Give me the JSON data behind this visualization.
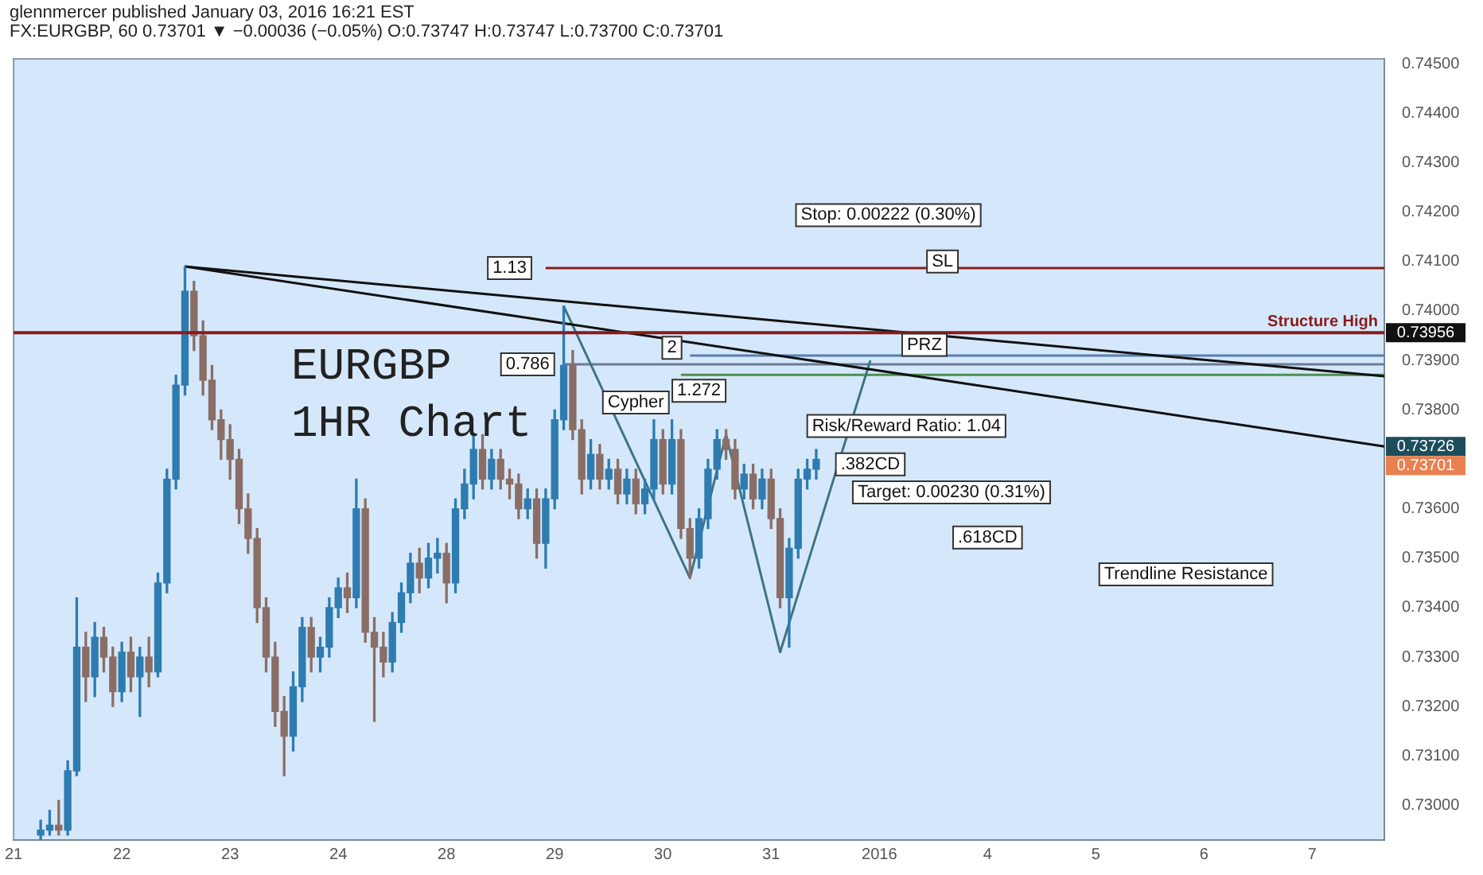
{
  "chart_data": {
    "type": "candlestick",
    "title": "glennmercer published January 03, 2016 16:21 EST",
    "subtitle": "FX:EURGBP, 60  0.73701 ▼ −0.00036 (−0.05%) O:0.73747 H:0.73747 L:0.73700 C:0.73701",
    "categories": [
      "21",
      null,
      null,
      null,
      null,
      null,
      null,
      null,
      null,
      null,
      null,
      null,
      "22",
      null,
      null,
      null,
      null,
      null,
      null,
      null,
      null,
      null,
      null,
      null,
      "23",
      null,
      null,
      null,
      null,
      null,
      null,
      null,
      null,
      null,
      null,
      null,
      "24",
      null,
      null,
      null,
      null,
      null,
      null,
      null,
      null,
      null,
      null,
      null,
      "28",
      null,
      null,
      null,
      null,
      null,
      null,
      null,
      null,
      null,
      null,
      null,
      "29",
      null,
      null,
      null,
      null,
      null,
      null,
      null,
      null,
      null,
      null,
      null,
      "30",
      null,
      null,
      null,
      null,
      null,
      null,
      null,
      null,
      null,
      null,
      null,
      "31",
      null,
      null,
      null,
      null,
      null,
      null,
      null,
      null,
      null,
      null,
      null,
      "2016",
      null,
      null,
      null,
      null,
      null,
      null,
      null,
      null,
      null,
      null,
      null,
      "4",
      null,
      null,
      null,
      null,
      null,
      null,
      null,
      null,
      null,
      null,
      null,
      "5",
      null,
      null,
      null,
      null,
      null,
      null,
      null,
      null,
      null,
      null,
      null,
      "6",
      null,
      null,
      null,
      null,
      null,
      null,
      null,
      null,
      null,
      null,
      null,
      "7",
      null,
      null,
      null,
      null,
      null,
      null,
      null,
      null
    ],
    "ohlc": [
      null,
      null,
      null,
      [
        0.7294,
        0.7297,
        0.7293,
        0.7295
      ],
      [
        0.7295,
        0.7299,
        0.7294,
        0.7296
      ],
      [
        0.7296,
        0.7301,
        0.7294,
        0.7295
      ],
      [
        0.7295,
        0.7309,
        0.7294,
        0.7307
      ],
      [
        0.7307,
        0.7342,
        0.7306,
        0.7332
      ],
      [
        0.7332,
        0.7335,
        0.7321,
        0.7326
      ],
      [
        0.7326,
        0.7337,
        0.7322,
        0.7334
      ],
      [
        0.7334,
        0.7336,
        0.7327,
        0.733
      ],
      [
        0.733,
        0.7332,
        0.732,
        0.7323
      ],
      [
        0.7323,
        0.7333,
        0.7321,
        0.7331
      ],
      [
        0.7331,
        0.7334,
        0.7323,
        0.7326
      ],
      [
        0.7326,
        0.7332,
        0.7318,
        0.733
      ],
      [
        0.733,
        0.7334,
        0.7324,
        0.7327
      ],
      [
        0.7327,
        0.7347,
        0.7326,
        0.7345
      ],
      [
        0.7345,
        0.7368,
        0.7343,
        0.7366
      ],
      [
        0.7366,
        0.7387,
        0.7364,
        0.7385
      ],
      [
        0.7385,
        0.7409,
        0.7383,
        0.7404
      ],
      [
        0.7404,
        0.7406,
        0.7392,
        0.7395
      ],
      [
        0.7395,
        0.7398,
        0.7383,
        0.7386
      ],
      [
        0.7386,
        0.7389,
        0.7376,
        0.7378
      ],
      [
        0.7378,
        0.738,
        0.737,
        0.7374
      ],
      [
        0.7374,
        0.7377,
        0.7366,
        0.737
      ],
      [
        0.737,
        0.7372,
        0.7357,
        0.736
      ],
      [
        0.736,
        0.7363,
        0.7351,
        0.7354
      ],
      [
        0.7354,
        0.7356,
        0.7337,
        0.734
      ],
      [
        0.734,
        0.7342,
        0.7327,
        0.733
      ],
      [
        0.733,
        0.7333,
        0.7316,
        0.7319
      ],
      [
        0.7319,
        0.7322,
        0.7306,
        0.7314
      ],
      [
        0.7314,
        0.7327,
        0.7311,
        0.7324
      ],
      [
        0.7324,
        0.7338,
        0.7321,
        0.7336
      ],
      [
        0.7336,
        0.7338,
        0.7327,
        0.733
      ],
      [
        0.733,
        0.7334,
        0.7327,
        0.7332
      ],
      [
        0.7332,
        0.7342,
        0.733,
        0.734
      ],
      [
        0.734,
        0.7346,
        0.7338,
        0.7344
      ],
      [
        0.7344,
        0.7347,
        0.7339,
        0.7342
      ],
      [
        0.7342,
        0.7366,
        0.734,
        0.736
      ],
      [
        0.736,
        0.7362,
        0.7333,
        0.7335
      ],
      [
        0.7335,
        0.7338,
        0.7317,
        0.7332
      ],
      [
        0.7332,
        0.7335,
        0.7326,
        0.7329
      ],
      [
        0.7329,
        0.7339,
        0.7327,
        0.7337
      ],
      [
        0.7337,
        0.7345,
        0.7335,
        0.7343
      ],
      [
        0.7343,
        0.7351,
        0.7341,
        0.7349
      ],
      [
        0.7349,
        0.7352,
        0.7343,
        0.7346
      ],
      [
        0.7346,
        0.7353,
        0.7344,
        0.735
      ],
      [
        0.735,
        0.7354,
        0.7347,
        0.7351
      ],
      [
        0.7351,
        0.7353,
        0.7341,
        0.7345
      ],
      [
        0.7345,
        0.7362,
        0.7343,
        0.736
      ],
      [
        0.736,
        0.7368,
        0.7358,
        0.7365
      ],
      [
        0.7365,
        0.7375,
        0.7362,
        0.7372
      ],
      [
        0.7372,
        0.7375,
        0.7364,
        0.7366
      ],
      [
        0.7366,
        0.7372,
        0.7364,
        0.737
      ],
      [
        0.737,
        0.7372,
        0.7364,
        0.7366
      ],
      [
        0.7366,
        0.7368,
        0.7362,
        0.7365
      ],
      [
        0.7365,
        0.7367,
        0.7358,
        0.736
      ],
      [
        0.736,
        0.7364,
        0.7358,
        0.7362
      ],
      [
        0.7362,
        0.7364,
        0.735,
        0.7353
      ],
      [
        0.7353,
        0.7364,
        0.7348,
        0.7362
      ],
      [
        0.7362,
        0.738,
        0.736,
        0.7378
      ],
      [
        0.7378,
        0.7401,
        0.7376,
        0.7389
      ],
      [
        0.7389,
        0.7392,
        0.7374,
        0.7376
      ],
      [
        0.7376,
        0.7378,
        0.7363,
        0.7366
      ],
      [
        0.7366,
        0.7374,
        0.7364,
        0.7371
      ],
      [
        0.7371,
        0.7373,
        0.7364,
        0.7366
      ],
      [
        0.7366,
        0.737,
        0.7364,
        0.7368
      ],
      [
        0.7368,
        0.737,
        0.7361,
        0.7363
      ],
      [
        0.7363,
        0.7368,
        0.7361,
        0.7366
      ],
      [
        0.7366,
        0.7368,
        0.7359,
        0.7361
      ],
      [
        0.7361,
        0.7366,
        0.7359,
        0.7364
      ],
      [
        0.7364,
        0.7378,
        0.7362,
        0.7374
      ],
      [
        0.7374,
        0.7376,
        0.7363,
        0.7365
      ],
      [
        0.7365,
        0.7378,
        0.7363,
        0.7374
      ],
      [
        0.7374,
        0.7376,
        0.7354,
        0.7356
      ],
      [
        0.7356,
        0.7358,
        0.7346,
        0.735
      ],
      [
        0.735,
        0.736,
        0.7348,
        0.7358
      ],
      [
        0.7358,
        0.737,
        0.7356,
        0.7368
      ],
      [
        0.7368,
        0.7376,
        0.7366,
        0.7374
      ],
      [
        0.7374,
        0.7376,
        0.737,
        0.7372
      ],
      [
        0.7372,
        0.7374,
        0.7362,
        0.7364
      ],
      [
        0.7364,
        0.7369,
        0.7362,
        0.7367
      ],
      [
        0.7367,
        0.7369,
        0.736,
        0.7362
      ],
      [
        0.7362,
        0.7368,
        0.736,
        0.7366
      ],
      [
        0.7366,
        0.7368,
        0.7356,
        0.7358
      ],
      [
        0.7358,
        0.736,
        0.734,
        0.7342
      ],
      [
        0.7342,
        0.7354,
        0.7332,
        0.7352
      ],
      [
        0.7352,
        0.7368,
        0.735,
        0.7366
      ],
      [
        0.7366,
        0.737,
        0.7364,
        0.7368
      ],
      [
        0.7368,
        0.7372,
        0.7366,
        0.737
      ],
      null,
      null,
      null,
      null,
      null,
      null,
      null,
      null,
      null,
      null,
      null,
      null,
      null,
      null,
      null,
      null,
      null,
      null,
      null,
      null,
      null,
      null,
      null,
      null,
      null,
      null,
      null,
      null,
      null,
      null,
      null,
      null,
      null,
      null,
      null,
      null,
      null,
      null,
      null,
      null,
      null,
      null,
      null,
      null,
      null,
      null,
      null,
      null,
      null,
      null,
      null,
      null,
      null,
      null,
      null,
      null,
      null,
      null,
      null,
      null,
      null,
      null,
      null
    ],
    "colors": [
      null,
      null,
      null,
      "#2e7cb0",
      "#2e7cb0",
      "#8a6e66",
      "#2e7cb0",
      "#2e7cb0",
      "#8a6e66",
      "#2e7cb0",
      "#8a6e66",
      "#8a6e66",
      "#2e7cb0",
      "#8a6e66",
      "#2e7cb0",
      "#8a6e66",
      "#2e7cb0",
      "#2e7cb0",
      "#2e7cb0",
      "#2e7cb0",
      "#8a6e66",
      "#8a6e66",
      "#8a6e66",
      "#8a6e66",
      "#8a6e66",
      "#8a6e66",
      "#8a6e66",
      "#8a6e66",
      "#8a6e66",
      "#8a6e66",
      "#8a6e66",
      "#2e7cb0",
      "#2e7cb0",
      "#8a6e66",
      "#2e7cb0",
      "#2e7cb0",
      "#2e7cb0",
      "#8a6e66",
      "#2e7cb0",
      "#8a6e66",
      "#8a6e66",
      "#8a6e66",
      "#2e7cb0",
      "#2e7cb0",
      "#2e7cb0",
      "#8a6e66",
      "#2e7cb0",
      "#2e7cb0",
      "#8a6e66",
      "#2e7cb0",
      "#2e7cb0",
      "#2e7cb0",
      "#8a6e66",
      "#2e7cb0",
      "#8a6e66",
      "#8a6e66",
      "#8a6e66",
      "#2e7cb0",
      "#8a6e66",
      "#2e7cb0",
      "#2e7cb0",
      "#2e7cb0",
      "#8a6e66",
      "#8a6e66",
      "#2e7cb0",
      "#8a6e66",
      "#2e7cb0",
      "#8a6e66",
      "#2e7cb0",
      "#8a6e66",
      "#2e7cb0",
      "#2e7cb0",
      "#8a6e66",
      "#2e7cb0",
      "#8a6e66",
      "#8a6e66",
      "#2e7cb0",
      "#2e7cb0",
      "#2e7cb0",
      "#8a6e66",
      "#8a6e66",
      "#2e7cb0",
      "#8a6e66",
      "#2e7cb0",
      "#8a6e66",
      "#8a6e66",
      "#2e7cb0",
      "#2e7cb0",
      "#2e7cb0",
      "#2e7cb0",
      null,
      null,
      null,
      null,
      null,
      null,
      null,
      null,
      null,
      null,
      null,
      null,
      null,
      null,
      null,
      null,
      null,
      null,
      null,
      null,
      null,
      null,
      null,
      null,
      null,
      null,
      null,
      null,
      null,
      null,
      null,
      null,
      null,
      null,
      null,
      null,
      null,
      null,
      null,
      null,
      null,
      null,
      null,
      null,
      null,
      null,
      null,
      null,
      null,
      null,
      null,
      null,
      null,
      null,
      null,
      null,
      null,
      null,
      null,
      null,
      null,
      null,
      null
    ],
    "series": [
      {
        "type": "line",
        "color": "#111111",
        "values": [
          null,
          null,
          null,
          null,
          null,
          null,
          null,
          null,
          null,
          null,
          null,
          null,
          null,
          null,
          null,
          null,
          null,
          null,
          null,
          0.7409,
          null,
          null,
          null,
          null,
          null,
          null,
          null,
          null,
          null,
          null,
          null,
          null,
          null,
          null,
          null,
          null,
          null,
          null,
          null,
          null,
          null,
          null,
          null,
          null,
          null,
          null,
          null,
          null,
          null,
          null,
          null,
          null,
          null,
          null,
          null,
          null,
          null,
          null,
          null,
          null,
          null,
          null,
          null,
          null,
          null,
          null,
          null,
          null,
          null,
          null,
          null,
          null,
          null,
          null,
          null,
          null,
          null,
          null,
          null,
          null,
          null,
          null,
          null,
          null,
          null,
          null,
          null,
          null,
          null,
          null,
          null,
          null,
          null,
          null,
          null,
          null,
          null,
          null,
          null,
          null,
          null,
          null,
          null,
          null,
          null,
          null,
          null,
          null,
          null,
          null,
          null,
          null,
          null,
          null,
          null,
          null,
          null,
          null,
          null,
          null,
          null,
          null,
          null,
          null,
          null,
          null,
          null,
          null,
          null,
          null,
          null,
          null,
          null,
          null,
          null,
          null,
          null,
          null,
          null,
          null,
          null,
          null,
          null,
          null,
          null,
          null,
          null,
          null,
          null,
          null,
          null,
          null,
          0.73868
        ]
      },
      {
        "type": "line",
        "color": "#111111",
        "values": [
          null,
          null,
          null,
          null,
          null,
          null,
          null,
          null,
          null,
          null,
          null,
          null,
          null,
          null,
          null,
          null,
          null,
          null,
          null,
          0.7409,
          null,
          null,
          null,
          null,
          null,
          null,
          null,
          null,
          null,
          null,
          null,
          null,
          null,
          null,
          null,
          null,
          null,
          null,
          null,
          null,
          null,
          null,
          null,
          null,
          null,
          null,
          null,
          null,
          null,
          null,
          null,
          null,
          null,
          null,
          null,
          null,
          null,
          null,
          null,
          null,
          null,
          null,
          null,
          null,
          null,
          null,
          null,
          null,
          null,
          null,
          null,
          null,
          null,
          null,
          null,
          null,
          null,
          null,
          null,
          null,
          null,
          null,
          null,
          null,
          null,
          null,
          null,
          null,
          null,
          null,
          null,
          null,
          null,
          null,
          null,
          null,
          null,
          null,
          null,
          null,
          null,
          null,
          null,
          null,
          null,
          null,
          null,
          null,
          null,
          null,
          null,
          null,
          null,
          null,
          null,
          null,
          null,
          null,
          null,
          null,
          null,
          null,
          null,
          null,
          null,
          null,
          null,
          null,
          null,
          null,
          null,
          null,
          null,
          null,
          null,
          null,
          null,
          null,
          null,
          null,
          null,
          null,
          null,
          null,
          null,
          null,
          null,
          null,
          null,
          null,
          null,
          null,
          0.73726
        ]
      },
      {
        "type": "line",
        "color": "#3f7384",
        "values": [
          null,
          null,
          null,
          null,
          null,
          null,
          null,
          null,
          null,
          null,
          null,
          null,
          null,
          null,
          null,
          null,
          null,
          null,
          null,
          null,
          null,
          null,
          null,
          null,
          null,
          null,
          null,
          null,
          null,
          null,
          null,
          null,
          null,
          null,
          null,
          null,
          null,
          null,
          null,
          null,
          null,
          null,
          null,
          null,
          null,
          null,
          null,
          null,
          null,
          null,
          null,
          null,
          null,
          null,
          null,
          null,
          null,
          null,
          null,
          null,
          null,
          0.7401,
          null,
          null,
          null,
          null,
          null,
          null,
          null,
          null,
          null,
          null,
          null,
          null,
          null,
          0.7346,
          null,
          null,
          null,
          0.7375,
          null,
          null,
          null,
          null,
          null,
          0.7331,
          null,
          null,
          null,
          null,
          null,
          null,
          null,
          null,
          null,
          0.739,
          null,
          null,
          null,
          null,
          null,
          null,
          null,
          null,
          null,
          null,
          null,
          null,
          null,
          null,
          null,
          null,
          null,
          null,
          null,
          null,
          null,
          null,
          null,
          null,
          null,
          null,
          null,
          null,
          null,
          null,
          null,
          null,
          null,
          null,
          null,
          null,
          null,
          null,
          null,
          null,
          null,
          null,
          null,
          null,
          null,
          null,
          null,
          null,
          null,
          null,
          null,
          null,
          null,
          null,
          null,
          null,
          null
        ]
      },
      {
        "type": "line",
        "color": "#8b1a1a",
        "values": [
          null,
          null,
          null,
          null,
          null,
          null,
          null,
          null,
          null,
          null,
          null,
          null,
          null,
          null,
          null,
          null,
          null,
          null,
          null,
          null,
          null,
          null,
          null,
          null,
          null,
          null,
          null,
          null,
          null,
          null,
          null,
          null,
          null,
          null,
          null,
          null,
          null,
          null,
          null,
          null,
          null,
          null,
          null,
          null,
          null,
          null,
          null,
          null,
          null,
          null,
          null,
          null,
          null,
          null,
          null,
          null,
          null,
          null,
          null,
          0.74087,
          null,
          null,
          null,
          null,
          null,
          null,
          null,
          null,
          null,
          null,
          null,
          null,
          null,
          null,
          null,
          null,
          null,
          null,
          null,
          null,
          null,
          null,
          null,
          null,
          null,
          null,
          null,
          null,
          null,
          null,
          null,
          null,
          null,
          null,
          null,
          null,
          null,
          null,
          null,
          null,
          null,
          null,
          null,
          null,
          null,
          null,
          null,
          null,
          null,
          null,
          null,
          null,
          null,
          null,
          null,
          null,
          null,
          null,
          null,
          null,
          null,
          null,
          null,
          null,
          null,
          null,
          null,
          null,
          null,
          null,
          null,
          null,
          null,
          null,
          null,
          null,
          null,
          null,
          null,
          null,
          null,
          null,
          null,
          null,
          null,
          null,
          null,
          null,
          null,
          null,
          null,
          null,
          0.74087
        ]
      },
      {
        "type": "line",
        "color": "#6b7c93",
        "values": [
          null,
          null,
          null,
          null,
          null,
          null,
          null,
          null,
          null,
          null,
          null,
          null,
          null,
          null,
          null,
          null,
          null,
          null,
          null,
          null,
          null,
          null,
          null,
          null,
          null,
          null,
          null,
          null,
          null,
          null,
          null,
          null,
          null,
          null,
          null,
          null,
          null,
          null,
          null,
          null,
          null,
          null,
          null,
          null,
          null,
          null,
          null,
          null,
          null,
          null,
          null,
          null,
          null,
          null,
          null,
          null,
          null,
          null,
          null,
          null,
          null,
          0.73892,
          null,
          null,
          null,
          null,
          null,
          null,
          null,
          null,
          null,
          null,
          null,
          null,
          null,
          null,
          null,
          null,
          null,
          null,
          null,
          null,
          null,
          null,
          null,
          null,
          null,
          null,
          null,
          null,
          null,
          null,
          null,
          null,
          null,
          null,
          null,
          null,
          null,
          null,
          null,
          null,
          null,
          null,
          null,
          null,
          null,
          null,
          null,
          null,
          null,
          null,
          null,
          null,
          null,
          null,
          null,
          null,
          null,
          null,
          null,
          null,
          null,
          null,
          null,
          null,
          null,
          null,
          null,
          null,
          null,
          null,
          null,
          null,
          null,
          null,
          null,
          null,
          null,
          null,
          null,
          null,
          null,
          null,
          null,
          null,
          null,
          null,
          null,
          null,
          null,
          null,
          0.73892
        ]
      },
      {
        "type": "line",
        "color": "#5a7fb0",
        "values": [
          null,
          null,
          null,
          null,
          null,
          null,
          null,
          null,
          null,
          null,
          null,
          null,
          null,
          null,
          null,
          null,
          null,
          null,
          null,
          null,
          null,
          null,
          null,
          null,
          null,
          null,
          null,
          null,
          null,
          null,
          null,
          null,
          null,
          null,
          null,
          null,
          null,
          null,
          null,
          null,
          null,
          null,
          null,
          null,
          null,
          null,
          null,
          null,
          null,
          null,
          null,
          null,
          null,
          null,
          null,
          null,
          null,
          null,
          null,
          null,
          null,
          null,
          null,
          null,
          null,
          null,
          null,
          null,
          null,
          null,
          null,
          null,
          null,
          null,
          null,
          0.7391,
          null,
          null,
          null,
          null,
          null,
          null,
          null,
          null,
          null,
          null,
          null,
          null,
          null,
          null,
          null,
          null,
          null,
          null,
          null,
          null,
          null,
          null,
          null,
          null,
          null,
          null,
          null,
          null,
          null,
          null,
          null,
          null,
          null,
          null,
          null,
          null,
          null,
          null,
          null,
          null,
          null,
          null,
          null,
          null,
          null,
          null,
          null,
          null,
          null,
          null,
          null,
          null,
          null,
          null,
          null,
          null,
          null,
          null,
          null,
          null,
          null,
          null,
          null,
          null,
          null,
          null,
          null,
          null,
          null,
          null,
          null,
          null,
          null,
          null,
          null,
          null,
          0.7391
        ]
      },
      {
        "type": "line",
        "color": "#4f8f4f",
        "values": [
          null,
          null,
          null,
          null,
          null,
          null,
          null,
          null,
          null,
          null,
          null,
          null,
          null,
          null,
          null,
          null,
          null,
          null,
          null,
          null,
          null,
          null,
          null,
          null,
          null,
          null,
          null,
          null,
          null,
          null,
          null,
          null,
          null,
          null,
          null,
          null,
          null,
          null,
          null,
          null,
          null,
          null,
          null,
          null,
          null,
          null,
          null,
          null,
          null,
          null,
          null,
          null,
          null,
          null,
          null,
          null,
          null,
          null,
          null,
          null,
          null,
          null,
          null,
          null,
          null,
          null,
          null,
          null,
          null,
          null,
          null,
          null,
          null,
          null,
          0.73871,
          null,
          null,
          null,
          null,
          null,
          null,
          null,
          null,
          null,
          null,
          null,
          null,
          null,
          null,
          null,
          null,
          null,
          null,
          null,
          null,
          null,
          null,
          null,
          null,
          null,
          null,
          null,
          null,
          null,
          null,
          null,
          null,
          null,
          null,
          null,
          null,
          null,
          null,
          null,
          null,
          null,
          null,
          null,
          null,
          null,
          null,
          null,
          null,
          null,
          null,
          null,
          null,
          null,
          null,
          null,
          null,
          null,
          null,
          null,
          null,
          null,
          null,
          null,
          null,
          null,
          null,
          null,
          null,
          null,
          null,
          null,
          null,
          null,
          null,
          null,
          null,
          null,
          0.73871
        ]
      }
    ],
    "ref_lines": [
      {
        "axis": "y",
        "value": 0.73956,
        "label": "Structure High",
        "color": "#8b1a1a"
      }
    ],
    "annotations": [
      "EURGBP",
      "1HR Chart",
      {
        "text": "1.13",
        "y": 0.74087
      },
      {
        "text": "0.786",
        "y": 0.73892
      },
      "2",
      "1.272",
      "Cypher",
      "Stop: 0.00222 (0.30%)",
      {
        "text": "SL",
        "y": 0.741
      },
      {
        "text": "PRZ",
        "y": 0.73925
      },
      "Risk/Reward Ratio: 1.04",
      {
        "text": ".382CD",
        "y": 0.7369
      },
      "Target: 0.00230 (0.31%)",
      {
        "text": ".618CD",
        "y": 0.73542
      },
      "Trendline Resistance",
      "0.73956",
      "0.73726",
      "0.73701"
    ],
    "ylim": [
      0.7293,
      0.7451
    ],
    "yticks": [
      {
        "value": 0.73,
        "label": "0.73000"
      },
      {
        "value": 0.731,
        "label": "0.73100"
      },
      {
        "value": 0.732,
        "label": "0.73200"
      },
      {
        "value": 0.733,
        "label": "0.73300"
      },
      {
        "value": 0.734,
        "label": "0.73400"
      },
      {
        "value": 0.735,
        "label": "0.73500"
      },
      {
        "value": 0.736,
        "label": "0.73600"
      },
      {
        "value": 0.738,
        "label": "0.73800"
      },
      {
        "value": 0.739,
        "label": "0.73900"
      },
      {
        "value": 0.74,
        "label": "0.74000"
      },
      {
        "value": 0.741,
        "label": "0.74100"
      },
      {
        "value": 0.742,
        "label": "0.74200"
      },
      {
        "value": 0.743,
        "label": "0.74300"
      },
      {
        "value": 0.744,
        "label": "0.74400"
      },
      {
        "value": 0.745,
        "label": "0.74500"
      }
    ],
    "marker": "none",
    "grid": false,
    "legend": false
  }
}
